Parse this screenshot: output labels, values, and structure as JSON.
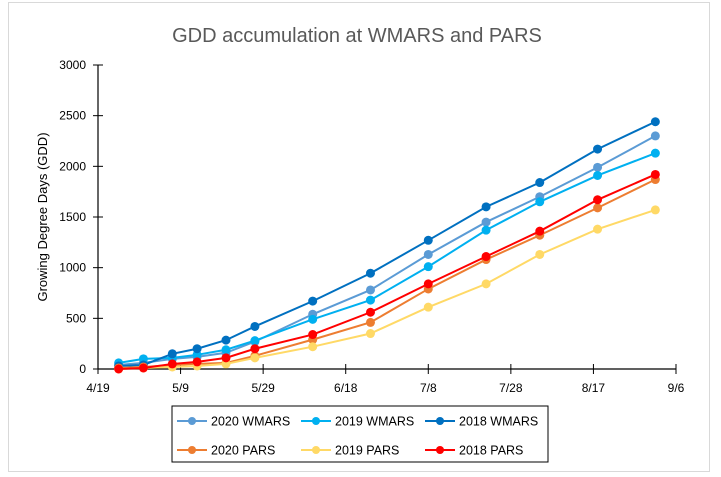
{
  "chart_data": {
    "type": "line",
    "title": "GDD accumulation at WMARS and PARS",
    "xlabel": "",
    "ylabel": "Growing Degree Days (GDD)",
    "xlim": [
      "4/19",
      "9/6"
    ],
    "ylim": [
      0,
      3000
    ],
    "x_ticks": [
      "4/19",
      "5/9",
      "5/29",
      "6/18",
      "7/8",
      "7/28",
      "8/17",
      "9/6"
    ],
    "y_ticks": [
      0,
      500,
      1000,
      1500,
      2000,
      2500,
      3000
    ],
    "grid": false,
    "legend": "bottom",
    "x": [
      "4/24",
      "4/30",
      "5/7",
      "5/13",
      "5/20",
      "5/27",
      "6/10",
      "6/24",
      "7/8",
      "7/22",
      "8/4",
      "8/18",
      "9/1"
    ],
    "series": [
      {
        "name": "2020 WMARS",
        "color": "#5b9bd5",
        "values": [
          40,
          60,
          100,
          120,
          160,
          270,
          540,
          780,
          1130,
          1450,
          1700,
          1990,
          2300
        ]
      },
      {
        "name": "2019 WMARS",
        "color": "#00b0f0",
        "values": [
          60,
          100,
          110,
          140,
          190,
          280,
          490,
          680,
          1010,
          1370,
          1650,
          1910,
          2130
        ]
      },
      {
        "name": "2018 WMARS",
        "color": "#0070c0",
        "values": [
          30,
          40,
          150,
          200,
          285,
          420,
          670,
          945,
          1270,
          1600,
          1840,
          2170,
          2440
        ]
      },
      {
        "name": "2020 PARS",
        "color": "#ed7d31",
        "values": [
          10,
          20,
          40,
          50,
          60,
          130,
          290,
          460,
          790,
          1080,
          1320,
          1590,
          1870
        ]
      },
      {
        "name": "2019 PARS",
        "color": "#ffd966",
        "values": [
          0,
          10,
          20,
          30,
          50,
          110,
          220,
          350,
          610,
          840,
          1130,
          1380,
          1570
        ]
      },
      {
        "name": "2018 PARS",
        "color": "#ff0000",
        "values": [
          0,
          10,
          50,
          70,
          110,
          200,
          340,
          560,
          840,
          1110,
          1360,
          1670,
          1920
        ]
      }
    ]
  }
}
